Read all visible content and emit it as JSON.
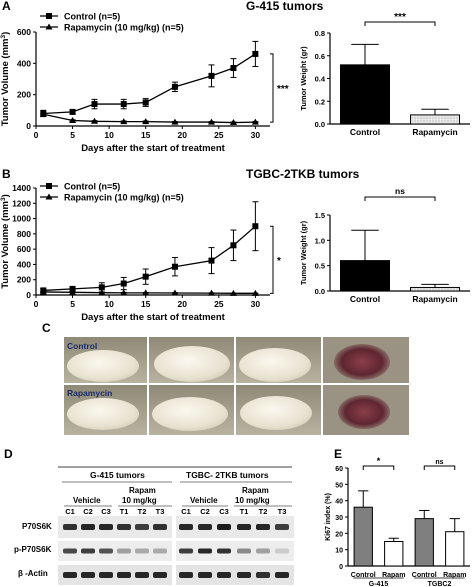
{
  "panels": {
    "A": "A",
    "B": "B",
    "C": "C",
    "D": "D",
    "E": "E"
  },
  "photo_labels": {
    "control": "Control",
    "rapamycin": "Rapamycin"
  },
  "western": {
    "group1": "G-415  tumors",
    "group2": "TGBC- 2TKB tumors",
    "vehicle": "Vehicle",
    "rapam": "Rapam",
    "rapam_dose": "10 mg/kg",
    "g1_lanes": [
      "C1",
      "C2",
      "C3",
      "T1",
      "T2",
      "T3"
    ],
    "g2_lanes": [
      "C1",
      "C2",
      "C3",
      "T1",
      "T2",
      "T3"
    ],
    "rows": [
      "P70S6K",
      "p-P70S6K",
      "β -Actin"
    ]
  },
  "chart_data": [
    {
      "id": "A-line",
      "type": "line",
      "xlabel": "Days after the start of treatment",
      "ylabel": "Tumor Volume (mm³)",
      "ylabel_main": "Tumor Volume (mm",
      "ylabel_sup": "3",
      "ylabel_tail": ")",
      "xlim": [
        0,
        32
      ],
      "ylim": [
        0,
        600
      ],
      "xticks": [
        0,
        5,
        10,
        15,
        20,
        25,
        30
      ],
      "yticks": [
        0,
        200,
        400,
        600
      ],
      "series": [
        {
          "name": "Control (n=5)",
          "marker": "square",
          "x": [
            1,
            5,
            8,
            12,
            15,
            19,
            24,
            27,
            30
          ],
          "y": [
            80,
            90,
            140,
            140,
            150,
            250,
            320,
            370,
            460
          ],
          "err": [
            20,
            15,
            30,
            30,
            25,
            30,
            70,
            60,
            80
          ]
        },
        {
          "name": "Rapamycin (10 mg/kg)  (n=5)",
          "marker": "triangle",
          "x": [
            1,
            5,
            8,
            12,
            15,
            19,
            24,
            27,
            30
          ],
          "y": [
            75,
            35,
            30,
            28,
            28,
            25,
            25,
            22,
            25
          ],
          "err": [
            5,
            5,
            4,
            4,
            4,
            3,
            3,
            3,
            3
          ]
        }
      ],
      "annotation": "***"
    },
    {
      "id": "A-bar",
      "type": "bar",
      "title": "G-415 tumors",
      "ylabel": "Tumor Weight (gr)",
      "categories": [
        "Control",
        "Rapamycin"
      ],
      "values": [
        0.52,
        0.08
      ],
      "errors": [
        0.18,
        0.05
      ],
      "ylim": [
        0,
        0.8
      ],
      "yticks": [
        0.0,
        0.2,
        0.4,
        0.6,
        0.8
      ],
      "annotation": "***"
    },
    {
      "id": "B-line",
      "type": "line",
      "title": "TGBC-2TKB  tumors",
      "xlabel": "Days after the start of treatment",
      "ylabel": "Tumor Volume (mm³)",
      "ylabel_main": "Tumor Volume (mm",
      "ylabel_sup": "3",
      "ylabel_tail": ")",
      "xlim": [
        0,
        32
      ],
      "ylim": [
        0,
        1400
      ],
      "xticks": [
        0,
        5,
        10,
        15,
        20,
        25,
        30
      ],
      "yticks": [
        0,
        200,
        400,
        600,
        800,
        1000,
        1200,
        1400
      ],
      "series": [
        {
          "name": "Control (n=5)",
          "marker": "square",
          "x": [
            1,
            5,
            9,
            12,
            15,
            19,
            24,
            27,
            30
          ],
          "y": [
            60,
            80,
            100,
            150,
            240,
            370,
            450,
            650,
            900
          ],
          "err": [
            25,
            30,
            60,
            80,
            100,
            120,
            170,
            200,
            320
          ]
        },
        {
          "name": "Rapamycin (10 mg/kg)  (n=5)",
          "marker": "triangle",
          "x": [
            1,
            5,
            9,
            12,
            15,
            19,
            24,
            27,
            30
          ],
          "y": [
            40,
            35,
            30,
            28,
            28,
            26,
            25,
            22,
            22
          ],
          "err": [
            5,
            5,
            5,
            4,
            4,
            4,
            3,
            3,
            3
          ]
        }
      ],
      "annotation": "*"
    },
    {
      "id": "B-bar",
      "type": "bar",
      "ylabel": "Tumor Weight (gr)",
      "categories": [
        "Control",
        "Rapamycin"
      ],
      "values": [
        0.6,
        0.07
      ],
      "errors": [
        0.6,
        0.06
      ],
      "ylim": [
        0,
        1.5
      ],
      "yticks": [
        0.0,
        0.5,
        1.0,
        1.5
      ],
      "annotation": "ns"
    },
    {
      "id": "E-bar",
      "type": "bar",
      "ylabel": "Ki67 index (%)",
      "categories": [
        "Control",
        "Rapam",
        "Control",
        "Rapam"
      ],
      "values": [
        36,
        15,
        29,
        21
      ],
      "errors": [
        10,
        2,
        5,
        8
      ],
      "colors": [
        "#7f7f7f",
        "#ffffff",
        "#7f7f7f",
        "#ffffff"
      ],
      "ylim": [
        0,
        60
      ],
      "yticks": [
        0,
        10,
        20,
        30,
        40,
        50,
        60
      ],
      "groups": [
        "G-415",
        "TGBC2"
      ],
      "annotations": [
        "*",
        "ns"
      ]
    }
  ]
}
